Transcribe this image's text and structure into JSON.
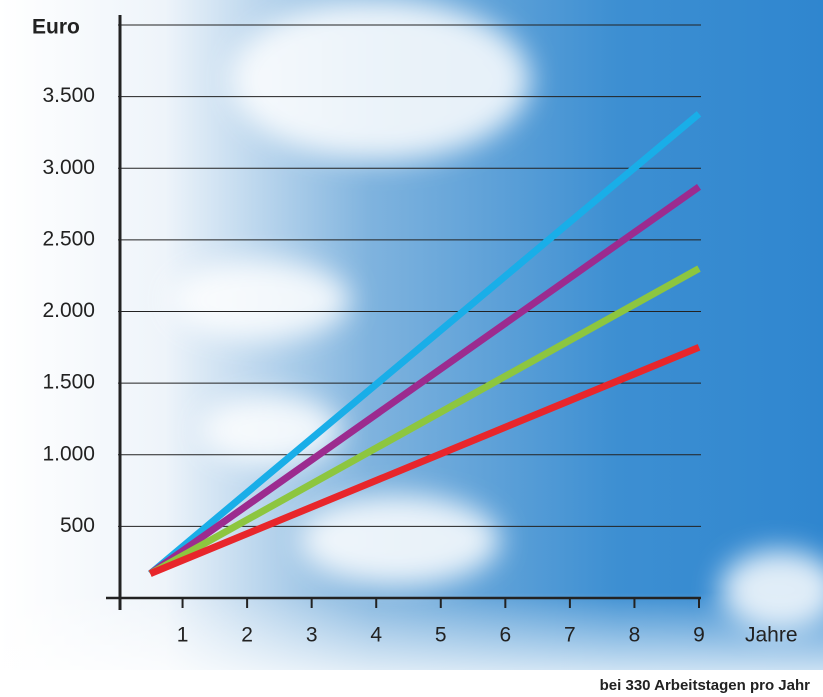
{
  "chart_data": {
    "type": "line",
    "y_label": "Euro",
    "x_label": "Jahre",
    "note": "bei 330 Arbeitstagen pro Jahr",
    "x": [
      0.5,
      9
    ],
    "series": [
      {
        "color": "#19aee8",
        "values": [
          170,
          3380
        ]
      },
      {
        "color": "#9c2b8f",
        "values": [
          170,
          2870
        ]
      },
      {
        "color": "#8dc63f",
        "values": [
          170,
          2300
        ]
      },
      {
        "color": "#e8262b",
        "values": [
          170,
          1750
        ]
      }
    ],
    "xlim": [
      0,
      9
    ],
    "xticks": [
      1,
      2,
      3,
      4,
      5,
      6,
      7,
      8,
      9
    ],
    "ylim": [
      0,
      4000
    ],
    "yticks": [
      {
        "value": 500,
        "label": "500"
      },
      {
        "value": 1000,
        "label": "1.000"
      },
      {
        "value": 1500,
        "label": "1.500"
      },
      {
        "value": 2000,
        "label": "2.000"
      },
      {
        "value": 2500,
        "label": "2.500"
      },
      {
        "value": 3000,
        "label": "3.000"
      },
      {
        "value": 3500,
        "label": "3.500"
      }
    ],
    "grid": true
  }
}
